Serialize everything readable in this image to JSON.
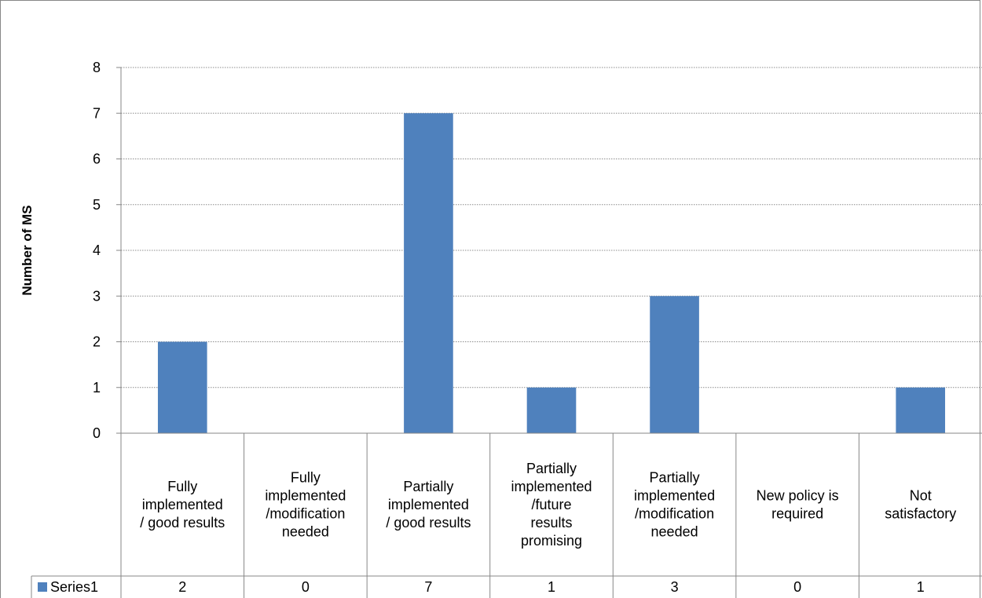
{
  "chart_data": {
    "type": "bar",
    "title": "",
    "xlabel": "",
    "ylabel": "Number of MS",
    "ylim": [
      0,
      8
    ],
    "yticks": [
      0,
      1,
      2,
      3,
      4,
      5,
      6,
      7,
      8
    ],
    "grid": true,
    "legend": "data-table",
    "categories": [
      "Fully implemented / good results",
      "Fully implemented /modification needed",
      "Partially implemented / good results",
      "Partially implemented /future results promising",
      "Partially implemented /modification needed",
      "New policy is required",
      "Not satisfactory"
    ],
    "category_lines": [
      [
        "Fully",
        "implemented",
        "/ good results"
      ],
      [
        "Fully",
        "implemented",
        "/modification",
        "needed"
      ],
      [
        "Partially",
        "implemented",
        "/ good results"
      ],
      [
        "Partially",
        "implemented",
        "/future",
        "results",
        "promising"
      ],
      [
        "Partially",
        "implemented",
        "/modification",
        "needed"
      ],
      [
        "New policy is",
        "required"
      ],
      [
        "Not",
        "satisfactory"
      ]
    ],
    "series": [
      {
        "name": "Series1",
        "values": [
          2,
          0,
          7,
          1,
          3,
          0,
          1
        ],
        "color": "#4f81bd"
      }
    ]
  }
}
